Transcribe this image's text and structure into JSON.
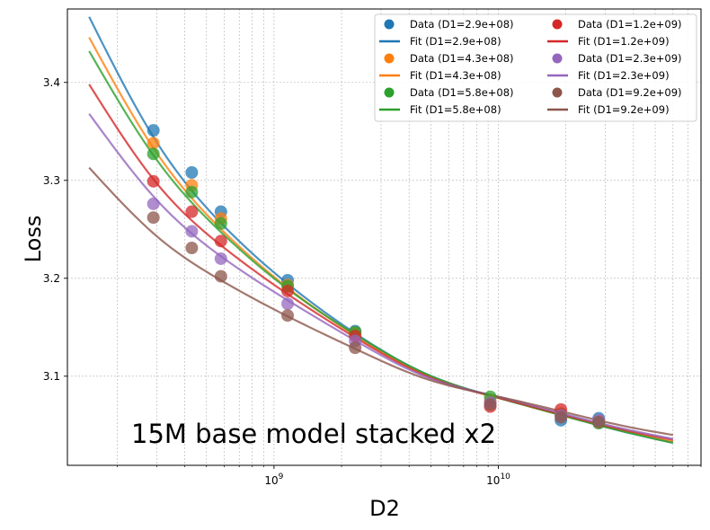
{
  "chart_data": {
    "type": "scatter",
    "title": "",
    "xlabel": "D2",
    "ylabel": "Loss",
    "xscale": "log",
    "xlim": [
      120000000.0,
      80000000000.0
    ],
    "ylim": [
      3.009,
      3.475
    ],
    "grid": true,
    "legend_position": "top-right",
    "annotation": "15M base model stacked x2",
    "x_ticks": [
      {
        "value": 1000000000.0,
        "base": "10",
        "exp": "9"
      },
      {
        "value": 10000000000.0,
        "base": "10",
        "exp": "10"
      }
    ],
    "y_ticks": [
      {
        "value": 3.1,
        "label": "3.1"
      },
      {
        "value": 3.2,
        "label": "3.2"
      },
      {
        "value": 3.3,
        "label": "3.3"
      },
      {
        "value": 3.4,
        "label": "3.4"
      }
    ],
    "fit_x_range": [
      150000000.0,
      60000000000.0
    ],
    "series": [
      {
        "name": "D1=2.9e+08",
        "data_label": "Data (D1=2.9e+08)",
        "fit_label": "Fit (D1=2.9e+08)",
        "color": "#1f77b4",
        "x": [
          290000000.0,
          430000000.0,
          580000000.0,
          1150000000.0,
          2300000000.0,
          19000000000.0,
          28000000000.0
        ],
        "y": [
          3.351,
          3.308,
          3.268,
          3.198,
          3.146,
          3.055,
          3.057
        ],
        "fit": {
          "x": [
            150000000.0,
            300000000.0,
            600000000.0,
            1200000000.0,
            2400000000.0,
            4800000000.0,
            9600000000.0,
            19200000000.0,
            38400000000.0,
            60000000000.0
          ],
          "y": [
            3.467,
            3.339,
            3.253,
            3.191,
            3.141,
            3.102,
            3.079,
            3.06,
            3.042,
            3.032
          ]
        }
      },
      {
        "name": "D1=4.3e+08",
        "data_label": "Data (D1=4.3e+08)",
        "fit_label": "Fit (D1=4.3e+08)",
        "color": "#ff7f0e",
        "x": [
          290000000.0,
          430000000.0,
          580000000.0,
          1150000000.0,
          2300000000.0,
          9200000000.0,
          19000000000.0,
          28000000000.0
        ],
        "y": [
          3.338,
          3.295,
          3.261,
          3.193,
          3.144,
          3.075,
          3.062,
          3.054
        ],
        "fit": {
          "x": [
            150000000.0,
            300000000.0,
            600000000.0,
            1200000000.0,
            2400000000.0,
            4800000000.0,
            9600000000.0,
            19200000000.0,
            38400000000.0,
            60000000000.0
          ],
          "y": [
            3.446,
            3.328,
            3.247,
            3.187,
            3.139,
            3.101,
            3.079,
            3.06,
            3.043,
            3.033
          ]
        }
      },
      {
        "name": "D1=5.8e+08",
        "data_label": "Data (D1=5.8e+08)",
        "fit_label": "Fit (D1=5.8e+08)",
        "color": "#2ca02c",
        "x": [
          290000000.0,
          430000000.0,
          580000000.0,
          1150000000.0,
          2300000000.0,
          9200000000.0,
          19000000000.0,
          28000000000.0
        ],
        "y": [
          3.327,
          3.288,
          3.256,
          3.192,
          3.145,
          3.079,
          3.061,
          3.052
        ],
        "fit": {
          "x": [
            150000000.0,
            300000000.0,
            600000000.0,
            1200000000.0,
            2400000000.0,
            4800000000.0,
            9600000000.0,
            19200000000.0,
            38400000000.0,
            60000000000.0
          ],
          "y": [
            3.432,
            3.321,
            3.244,
            3.186,
            3.14,
            3.102,
            3.079,
            3.06,
            3.042,
            3.032
          ]
        }
      },
      {
        "name": "D1=1.2e+09",
        "data_label": "Data (D1=1.2e+09)",
        "fit_label": "Fit (D1=1.2e+09)",
        "color": "#d62728",
        "x": [
          290000000.0,
          430000000.0,
          580000000.0,
          1150000000.0,
          2300000000.0,
          9200000000.0,
          19000000000.0
        ],
        "y": [
          3.299,
          3.268,
          3.238,
          3.187,
          3.141,
          3.069,
          3.066
        ],
        "fit": {
          "x": [
            150000000.0,
            300000000.0,
            600000000.0,
            1200000000.0,
            2400000000.0,
            4800000000.0,
            9600000000.0,
            19200000000.0,
            38400000000.0,
            60000000000.0
          ],
          "y": [
            3.398,
            3.297,
            3.231,
            3.181,
            3.137,
            3.1,
            3.079,
            3.061,
            3.044,
            3.035
          ]
        }
      },
      {
        "name": "D1=2.3e+09",
        "data_label": "Data (D1=2.3e+09)",
        "fit_label": "Fit (D1=2.3e+09)",
        "color": "#9467bd",
        "x": [
          290000000.0,
          430000000.0,
          580000000.0,
          1150000000.0,
          2300000000.0,
          9200000000.0,
          19000000000.0,
          28000000000.0
        ],
        "y": [
          3.276,
          3.248,
          3.22,
          3.174,
          3.136,
          3.073,
          3.06,
          3.055
        ],
        "fit": {
          "x": [
            150000000.0,
            300000000.0,
            600000000.0,
            1200000000.0,
            2400000000.0,
            4800000000.0,
            9600000000.0,
            19200000000.0,
            38400000000.0,
            60000000000.0
          ],
          "y": [
            3.368,
            3.28,
            3.22,
            3.175,
            3.134,
            3.099,
            3.08,
            3.062,
            3.045,
            3.036
          ]
        }
      },
      {
        "name": "D1=9.2e+09",
        "data_label": "Data (D1=9.2e+09)",
        "fit_label": "Fit (D1=9.2e+09)",
        "color": "#8c564b",
        "x": [
          290000000.0,
          430000000.0,
          580000000.0,
          1150000000.0,
          2300000000.0,
          9200000000.0,
          19000000000.0,
          28000000000.0
        ],
        "y": [
          3.262,
          3.231,
          3.202,
          3.162,
          3.129,
          3.071,
          3.058,
          3.053
        ],
        "fit": {
          "x": [
            150000000.0,
            300000000.0,
            600000000.0,
            1200000000.0,
            2400000000.0,
            4800000000.0,
            9600000000.0,
            19200000000.0,
            38400000000.0,
            60000000000.0
          ],
          "y": [
            3.313,
            3.243,
            3.196,
            3.159,
            3.126,
            3.097,
            3.08,
            3.064,
            3.048,
            3.04
          ]
        }
      }
    ]
  }
}
